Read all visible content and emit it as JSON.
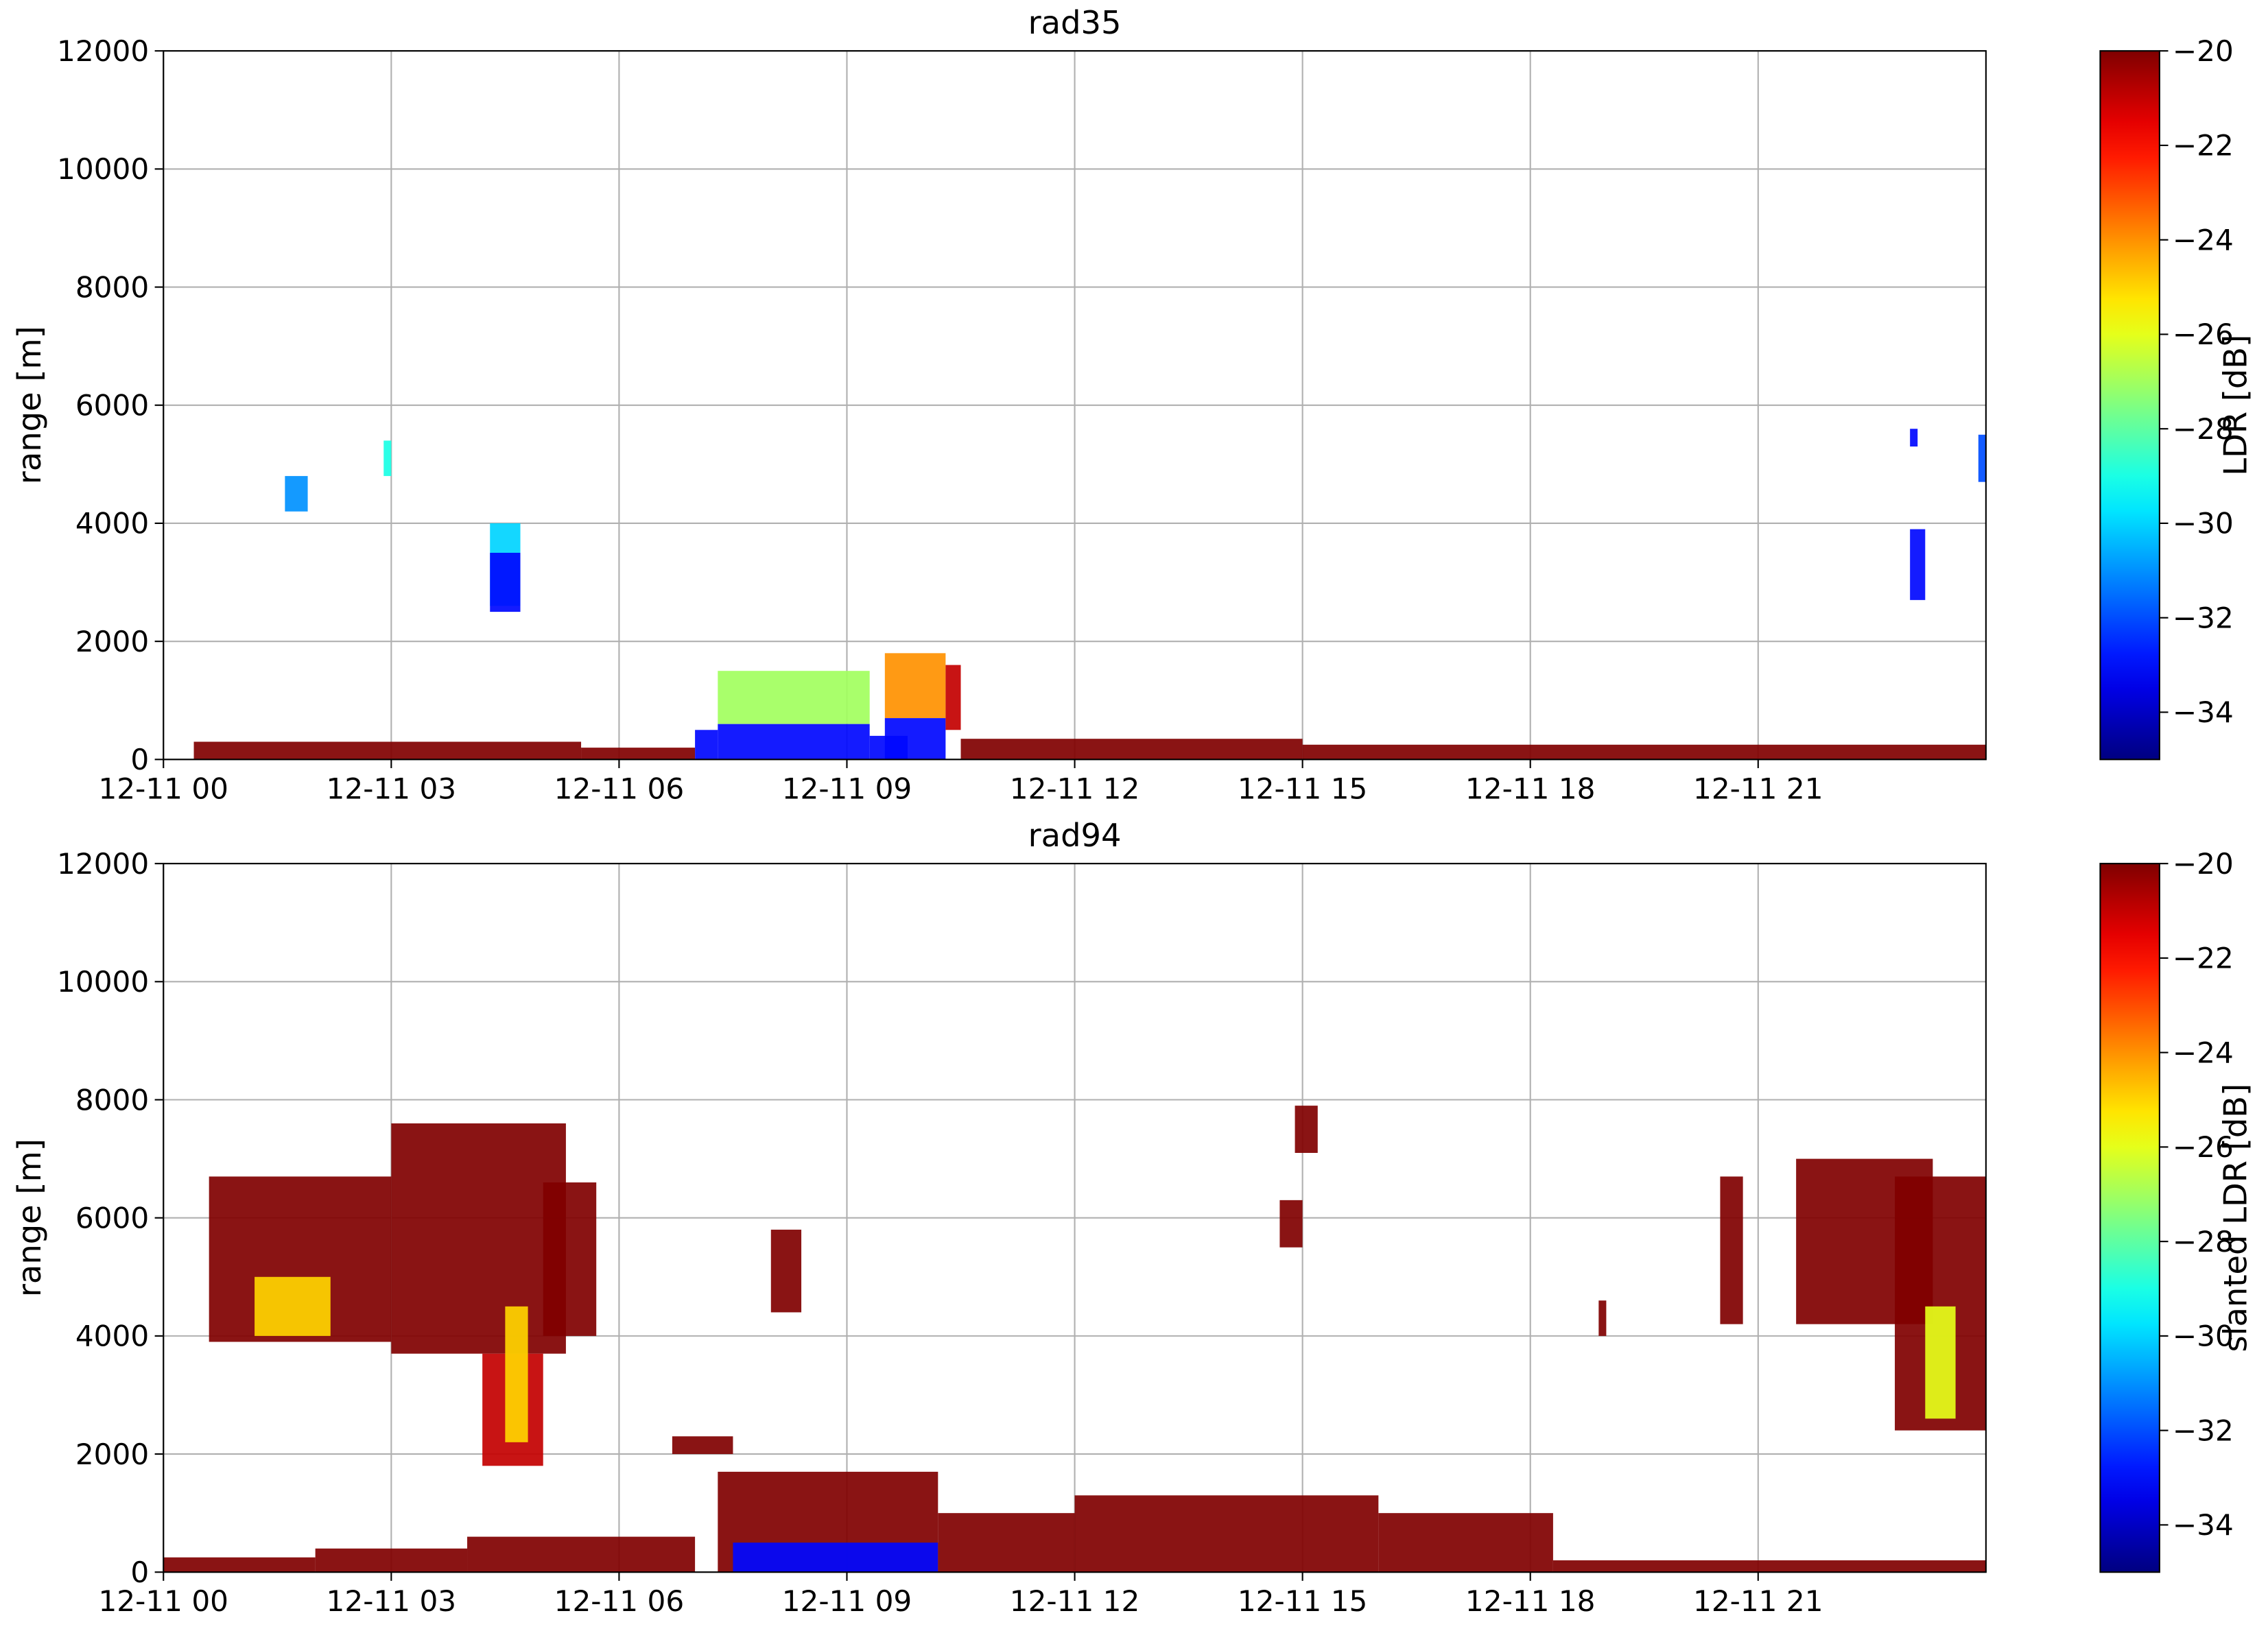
{
  "chart_data": [
    {
      "type": "heatmap",
      "title": "rad35",
      "ylabel": "range [m]",
      "grid": true,
      "xlim": [
        0,
        24
      ],
      "xticks": [
        {
          "value": 0,
          "label": "12-11 00"
        },
        {
          "value": 3,
          "label": "12-11 03"
        },
        {
          "value": 6,
          "label": "12-11 06"
        },
        {
          "value": 9,
          "label": "12-11 09"
        },
        {
          "value": 12,
          "label": "12-11 12"
        },
        {
          "value": 15,
          "label": "12-11 15"
        },
        {
          "value": 18,
          "label": "12-11 18"
        },
        {
          "value": 21,
          "label": "12-11 21"
        }
      ],
      "ylim": [
        0,
        12000
      ],
      "yticks": [
        0,
        2000,
        4000,
        6000,
        8000,
        10000,
        12000
      ],
      "colorbar": {
        "label": "LDR [dB]",
        "colormap": "jet",
        "lim": [
          -35,
          -20
        ],
        "ticks": [
          {
            "value": -20,
            "label": "−20"
          },
          {
            "value": -22,
            "label": "−22"
          },
          {
            "value": -24,
            "label": "−24"
          },
          {
            "value": -26,
            "label": "−26"
          },
          {
            "value": -28,
            "label": "−28"
          },
          {
            "value": -30,
            "label": "−30"
          },
          {
            "value": -32,
            "label": "−32"
          },
          {
            "value": -34,
            "label": "−34"
          }
        ]
      },
      "patches": [
        {
          "x": [
            0.4,
            5.5
          ],
          "y": [
            0,
            300
          ],
          "value": -20
        },
        {
          "x": [
            5.5,
            7
          ],
          "y": [
            0,
            200
          ],
          "value": -20
        },
        {
          "x": [
            10.5,
            15
          ],
          "y": [
            0,
            350
          ],
          "value": -20
        },
        {
          "x": [
            15,
            24
          ],
          "y": [
            0,
            250
          ],
          "value": -20
        },
        {
          "x": [
            1.6,
            1.9
          ],
          "y": [
            4200,
            4800
          ],
          "value": -31
        },
        {
          "x": [
            2.9,
            3.0
          ],
          "y": [
            4800,
            5400
          ],
          "value": -29
        },
        {
          "x": [
            4.3,
            4.7
          ],
          "y": [
            2600,
            4000
          ],
          "value": -30
        },
        {
          "x": [
            4.3,
            4.7
          ],
          "y": [
            2500,
            3500
          ],
          "value": -33
        },
        {
          "x": [
            7.0,
            7.3
          ],
          "y": [
            0,
            500
          ],
          "value": -33
        },
        {
          "x": [
            7.3,
            9.3
          ],
          "y": [
            600,
            1500
          ],
          "value": -27
        },
        {
          "x": [
            7.3,
            9.3
          ],
          "y": [
            0,
            600
          ],
          "value": -33
        },
        {
          "x": [
            9.3,
            9.8
          ],
          "y": [
            0,
            400
          ],
          "value": -33
        },
        {
          "x": [
            9.5,
            10.3
          ],
          "y": [
            700,
            1800
          ],
          "value": -24
        },
        {
          "x": [
            9.5,
            10.3
          ],
          "y": [
            0,
            700
          ],
          "value": -33
        },
        {
          "x": [
            10.3,
            10.5
          ],
          "y": [
            500,
            1600
          ],
          "value": -21
        },
        {
          "x": [
            23.0,
            23.2
          ],
          "y": [
            2700,
            3900
          ],
          "value": -33
        },
        {
          "x": [
            23.0,
            23.1
          ],
          "y": [
            5300,
            5600
          ],
          "value": -33
        },
        {
          "x": [
            23.9,
            24.0
          ],
          "y": [
            4700,
            5500
          ],
          "value": -32
        }
      ]
    },
    {
      "type": "heatmap",
      "title": "rad94",
      "ylabel": "range [m]",
      "grid": true,
      "xlim": [
        0,
        24
      ],
      "xticks": [
        {
          "value": 0,
          "label": "12-11 00"
        },
        {
          "value": 3,
          "label": "12-11 03"
        },
        {
          "value": 6,
          "label": "12-11 06"
        },
        {
          "value": 9,
          "label": "12-11 09"
        },
        {
          "value": 12,
          "label": "12-11 12"
        },
        {
          "value": 15,
          "label": "12-11 15"
        },
        {
          "value": 18,
          "label": "12-11 18"
        },
        {
          "value": 21,
          "label": "12-11 21"
        }
      ],
      "ylim": [
        0,
        12000
      ],
      "yticks": [
        0,
        2000,
        4000,
        6000,
        8000,
        10000,
        12000
      ],
      "colorbar": {
        "label": "slanted LDR [dB]",
        "colormap": "jet",
        "lim": [
          -35,
          -20
        ],
        "ticks": [
          {
            "value": -20,
            "label": "−20"
          },
          {
            "value": -22,
            "label": "−22"
          },
          {
            "value": -24,
            "label": "−24"
          },
          {
            "value": -26,
            "label": "−26"
          },
          {
            "value": -28,
            "label": "−28"
          },
          {
            "value": -30,
            "label": "−30"
          },
          {
            "value": -32,
            "label": "−32"
          },
          {
            "value": -34,
            "label": "−34"
          }
        ]
      },
      "patches": [
        {
          "x": [
            0,
            2
          ],
          "y": [
            0,
            250
          ],
          "value": -20
        },
        {
          "x": [
            2,
            4
          ],
          "y": [
            0,
            400
          ],
          "value": -20
        },
        {
          "x": [
            4,
            7
          ],
          "y": [
            0,
            600
          ],
          "value": -20
        },
        {
          "x": [
            0.6,
            3.0
          ],
          "y": [
            3900,
            6700
          ],
          "value": -20
        },
        {
          "x": [
            1.2,
            2.2
          ],
          "y": [
            4000,
            5000
          ],
          "value": -25
        },
        {
          "x": [
            3.0,
            5.3
          ],
          "y": [
            3700,
            7600
          ],
          "value": -20
        },
        {
          "x": [
            4.2,
            5.0
          ],
          "y": [
            1800,
            3700
          ],
          "value": -21
        },
        {
          "x": [
            4.5,
            4.8
          ],
          "y": [
            2200,
            4500
          ],
          "value": -25
        },
        {
          "x": [
            5.0,
            5.7
          ],
          "y": [
            4000,
            6600
          ],
          "value": -20
        },
        {
          "x": [
            6.7,
            7.5
          ],
          "y": [
            2000,
            2300
          ],
          "value": -20
        },
        {
          "x": [
            7.3,
            10.2
          ],
          "y": [
            0,
            1700
          ],
          "value": -20
        },
        {
          "x": [
            7.5,
            10.2
          ],
          "y": [
            0,
            500
          ],
          "value": -33
        },
        {
          "x": [
            8.0,
            8.4
          ],
          "y": [
            4400,
            5800
          ],
          "value": -20
        },
        {
          "x": [
            10.2,
            12
          ],
          "y": [
            0,
            1000
          ],
          "value": -20
        },
        {
          "x": [
            12,
            16
          ],
          "y": [
            0,
            1300
          ],
          "value": -20
        },
        {
          "x": [
            16,
            18.3
          ],
          "y": [
            0,
            1000
          ],
          "value": -20
        },
        {
          "x": [
            18.3,
            24
          ],
          "y": [
            0,
            200
          ],
          "value": -20
        },
        {
          "x": [
            14.7,
            15.0
          ],
          "y": [
            5500,
            6300
          ],
          "value": -20
        },
        {
          "x": [
            14.9,
            15.2
          ],
          "y": [
            7100,
            7900
          ],
          "value": -20
        },
        {
          "x": [
            18.9,
            19.0
          ],
          "y": [
            4000,
            4600
          ],
          "value": -20
        },
        {
          "x": [
            20.5,
            20.8
          ],
          "y": [
            4200,
            6700
          ],
          "value": -20
        },
        {
          "x": [
            21.5,
            23.3
          ],
          "y": [
            4200,
            7000
          ],
          "value": -20
        },
        {
          "x": [
            22.8,
            24
          ],
          "y": [
            2400,
            6700
          ],
          "value": -20
        },
        {
          "x": [
            23.2,
            23.6
          ],
          "y": [
            2600,
            4500
          ],
          "value": -26
        }
      ]
    }
  ]
}
